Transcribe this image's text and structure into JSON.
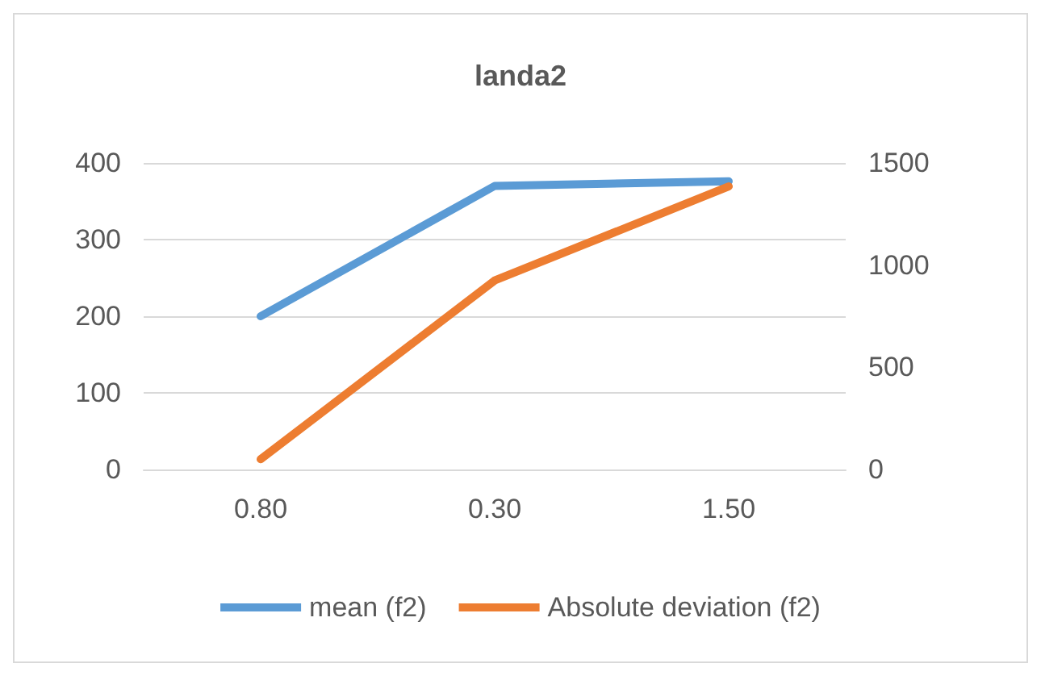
{
  "chart_data": {
    "type": "line",
    "title": "landa2",
    "categories": [
      "0.80",
      "0.30",
      "1.50"
    ],
    "series": [
      {
        "name": "mean (f2)",
        "color": "#5b9bd5",
        "values": [
          200,
          370,
          376
        ]
      },
      {
        "name": "Absolute deviation (f2)",
        "color": "#ed7d31",
        "values": [
          50,
          925,
          1385
        ],
        "axis": "y2"
      }
    ],
    "ylim": [
      0,
      400
    ],
    "yticks": [
      0,
      100,
      200,
      300,
      400
    ],
    "y2lim": [
      0,
      1500
    ],
    "y2ticks": [
      0,
      500,
      1000,
      1500
    ],
    "grid": "y",
    "legend": "bottom",
    "marker": "none",
    "line_style": "solid"
  }
}
